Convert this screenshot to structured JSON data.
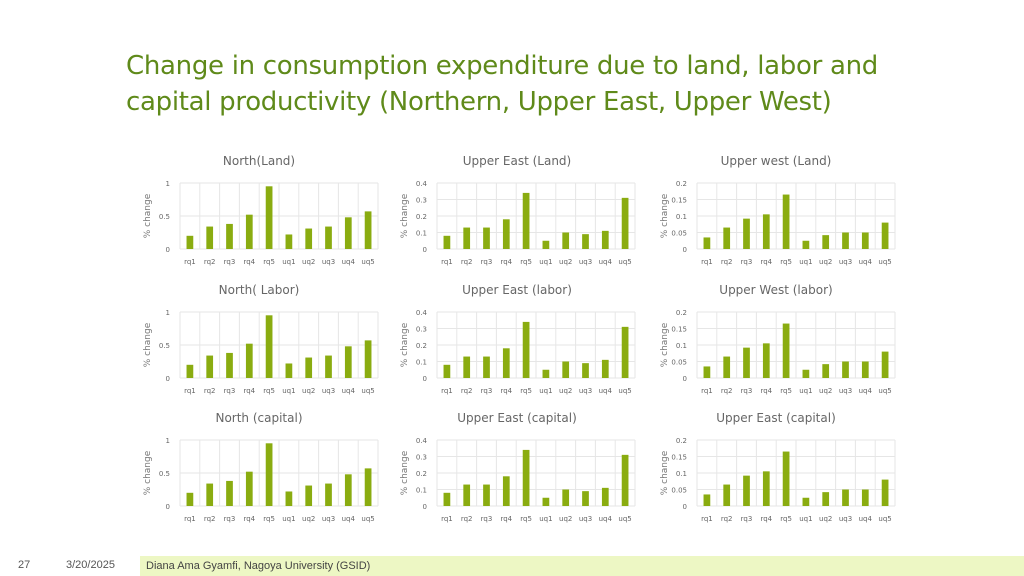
{
  "slide": {
    "title_line1": "Change in consumption expenditure due to land, labor and",
    "title_line2": "capital productivity (Northern, Upper East, Upper West)"
  },
  "footer": {
    "slide_number": "27",
    "date": "3/20/2025",
    "credit": "Diana Ama Gyamfi, Nagoya University (GSID)"
  },
  "colors": {
    "bar": "#8aac10",
    "title": "#5f8a1a",
    "grid": "#e6e6e6",
    "axis_text": "#666666",
    "footer_bar": "#edf7c4"
  },
  "chart_data": [
    {
      "type": "bar",
      "title": "North(Land)",
      "ylabel": "% change",
      "ylim": [
        0,
        1
      ],
      "yticks": [
        "0",
        "0.5",
        "1"
      ],
      "categories": [
        "rq1",
        "rq2",
        "rq3",
        "rq4",
        "rq5",
        "uq1",
        "uq2",
        "uq3",
        "uq4",
        "uq5"
      ],
      "values": [
        0.2,
        0.34,
        0.38,
        0.52,
        0.95,
        0.22,
        0.31,
        0.34,
        0.48,
        0.57
      ],
      "grid": true,
      "legend": "none"
    },
    {
      "type": "bar",
      "title": "Upper East (Land)",
      "ylabel": "% change",
      "ylim": [
        0,
        0.4
      ],
      "yticks": [
        "0",
        "0.1",
        "0.2",
        "0.3",
        "0.4"
      ],
      "categories": [
        "rq1",
        "rq2",
        "rq3",
        "rq4",
        "rq5",
        "uq1",
        "uq2",
        "uq3",
        "uq4",
        "uq5"
      ],
      "values": [
        0.08,
        0.13,
        0.13,
        0.18,
        0.34,
        0.05,
        0.1,
        0.09,
        0.11,
        0.31
      ],
      "grid": true,
      "legend": "none"
    },
    {
      "type": "bar",
      "title": "Upper west (Land)",
      "ylabel": "% change",
      "ylim": [
        0,
        0.2
      ],
      "yticks": [
        "0",
        "0.05",
        "0.1",
        "0.15",
        "0.2"
      ],
      "categories": [
        "rq1",
        "rq2",
        "rq3",
        "rq4",
        "rq5",
        "uq1",
        "uq2",
        "uq3",
        "uq4",
        "uq5"
      ],
      "values": [
        0.035,
        0.065,
        0.092,
        0.105,
        0.165,
        0.025,
        0.042,
        0.05,
        0.05,
        0.08
      ],
      "grid": true,
      "legend": "none"
    },
    {
      "type": "bar",
      "title": "North( Labor)",
      "ylabel": "% change",
      "ylim": [
        0,
        1
      ],
      "yticks": [
        "0",
        "0.5",
        "1"
      ],
      "categories": [
        "rq1",
        "rq2",
        "rq3",
        "rq4",
        "rq5",
        "uq1",
        "uq2",
        "uq3",
        "uq4",
        "uq5"
      ],
      "values": [
        0.2,
        0.34,
        0.38,
        0.52,
        0.95,
        0.22,
        0.31,
        0.34,
        0.48,
        0.57
      ],
      "grid": true,
      "legend": "none"
    },
    {
      "type": "bar",
      "title": "Upper East (labor)",
      "ylabel": "% change",
      "ylim": [
        0,
        0.4
      ],
      "yticks": [
        "0",
        "0.1",
        "0.2",
        "0.3",
        "0.4"
      ],
      "categories": [
        "rq1",
        "rq2",
        "rq3",
        "rq4",
        "rq5",
        "uq1",
        "uq2",
        "uq3",
        "uq4",
        "uq5"
      ],
      "values": [
        0.08,
        0.13,
        0.13,
        0.18,
        0.34,
        0.05,
        0.1,
        0.09,
        0.11,
        0.31
      ],
      "grid": true,
      "legend": "none"
    },
    {
      "type": "bar",
      "title": "Upper West (labor)",
      "ylabel": "% change",
      "ylim": [
        0,
        0.2
      ],
      "yticks": [
        "0",
        "0.05",
        "0.1",
        "0.15",
        "0.2"
      ],
      "categories": [
        "rq1",
        "rq2",
        "rq3",
        "rq4",
        "rq5",
        "uq1",
        "uq2",
        "uq3",
        "uq4",
        "uq5"
      ],
      "values": [
        0.035,
        0.065,
        0.092,
        0.105,
        0.165,
        0.025,
        0.042,
        0.05,
        0.05,
        0.08
      ],
      "grid": true,
      "legend": "none"
    },
    {
      "type": "bar",
      "title": "North (capital)",
      "ylabel": "% change",
      "ylim": [
        0,
        1
      ],
      "yticks": [
        "0",
        "0.5",
        "1"
      ],
      "categories": [
        "rq1",
        "rq2",
        "rq3",
        "rq4",
        "rq5",
        "uq1",
        "uq2",
        "uq3",
        "uq4",
        "uq5"
      ],
      "values": [
        0.2,
        0.34,
        0.38,
        0.52,
        0.95,
        0.22,
        0.31,
        0.34,
        0.48,
        0.57
      ],
      "grid": true,
      "legend": "none"
    },
    {
      "type": "bar",
      "title": "Upper East (capital)",
      "ylabel": "% change",
      "ylim": [
        0,
        0.4
      ],
      "yticks": [
        "0",
        "0.1",
        "0.2",
        "0.3",
        "0.4"
      ],
      "categories": [
        "rq1",
        "rq2",
        "rq3",
        "rq4",
        "rq5",
        "uq1",
        "uq2",
        "uq3",
        "uq4",
        "uq5"
      ],
      "values": [
        0.08,
        0.13,
        0.13,
        0.18,
        0.34,
        0.05,
        0.1,
        0.09,
        0.11,
        0.31
      ],
      "grid": true,
      "legend": "none"
    },
    {
      "type": "bar",
      "title": "Upper East (capital)",
      "ylabel": "% change",
      "ylim": [
        0,
        0.2
      ],
      "yticks": [
        "0",
        "0.05",
        "0.1",
        "0.15",
        "0.2"
      ],
      "categories": [
        "rq1",
        "rq2",
        "rq3",
        "rq4",
        "rq5",
        "uq1",
        "uq2",
        "uq3",
        "uq4",
        "uq5"
      ],
      "values": [
        0.035,
        0.065,
        0.092,
        0.105,
        0.165,
        0.025,
        0.042,
        0.05,
        0.05,
        0.08
      ],
      "grid": true,
      "legend": "none"
    }
  ]
}
